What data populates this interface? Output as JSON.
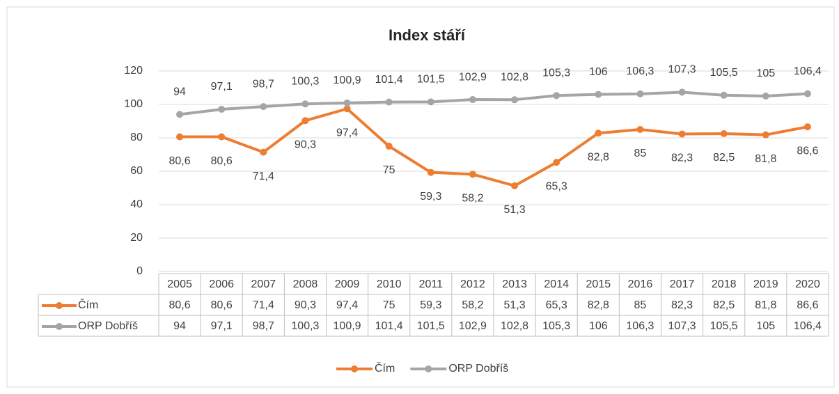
{
  "chart_data": {
    "type": "line",
    "title": "Index stáří",
    "categories": [
      "2005",
      "2006",
      "2007",
      "2008",
      "2009",
      "2010",
      "2011",
      "2012",
      "2013",
      "2014",
      "2015",
      "2016",
      "2017",
      "2018",
      "2019",
      "2020"
    ],
    "series": [
      {
        "name": "Čím",
        "color": "#ed7d31",
        "values": [
          80.6,
          80.6,
          71.4,
          90.3,
          97.4,
          75,
          59.3,
          58.2,
          51.3,
          65.3,
          82.8,
          85,
          82.3,
          82.5,
          81.8,
          86.6
        ],
        "value_labels": [
          "80,6",
          "80,6",
          "71,4",
          "90,3",
          "97,4",
          "75",
          "59,3",
          "58,2",
          "51,3",
          "65,3",
          "82,8",
          "85",
          "82,3",
          "82,5",
          "81,8",
          "86,6"
        ]
      },
      {
        "name": "ORP Dobříš",
        "color": "#a5a5a5",
        "values": [
          94,
          97.1,
          98.7,
          100.3,
          100.9,
          101.4,
          101.5,
          102.9,
          102.8,
          105.3,
          106,
          106.3,
          107.3,
          105.5,
          105,
          106.4
        ],
        "value_labels": [
          "94",
          "97,1",
          "98,7",
          "100,3",
          "100,9",
          "101,4",
          "101,5",
          "102,9",
          "102,8",
          "105,3",
          "106",
          "106,3",
          "107,3",
          "105,5",
          "105",
          "106,4"
        ]
      }
    ],
    "ylim": [
      0,
      120
    ],
    "yticks": [
      0,
      20,
      40,
      60,
      80,
      100,
      120
    ],
    "grid": true,
    "legend": "bottom",
    "data_table": true
  }
}
